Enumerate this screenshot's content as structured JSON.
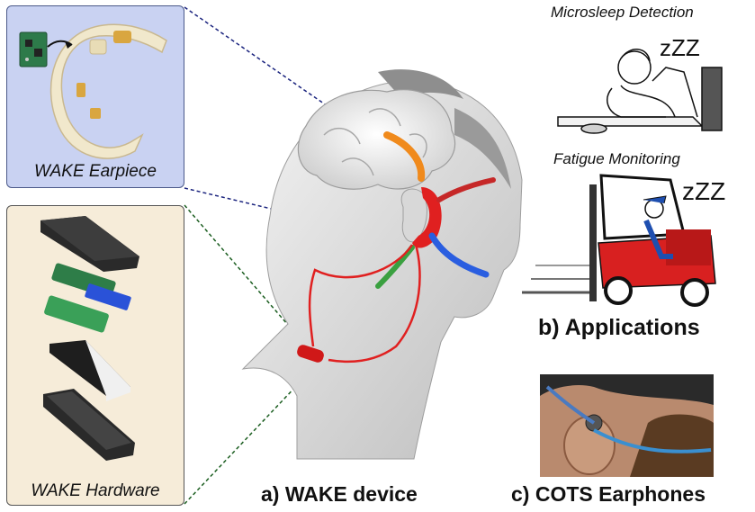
{
  "earpiece": {
    "label": "WAKE Earpiece"
  },
  "hardware": {
    "label": "WAKE Hardware"
  },
  "device": {
    "caption": "a) WAKE device"
  },
  "applications": {
    "caption": "b) Applications",
    "microsleep": {
      "title": "Microsleep Detection",
      "sleep_text": "zZZ"
    },
    "fatigue": {
      "title": "Fatigue Monitoring",
      "sleep_text": "zZZ"
    }
  },
  "cots": {
    "caption": "c) COTS Earphones"
  },
  "colors": {
    "earpiece_bg": "#c9d2f2",
    "hardware_bg": "#f6ecd9",
    "cable_red": "#e02020",
    "forklift_red": "#d82020",
    "arrow_blue": "#2a5ee0",
    "arrow_orange": "#f08a1c",
    "arrow_green": "#3aa040"
  }
}
